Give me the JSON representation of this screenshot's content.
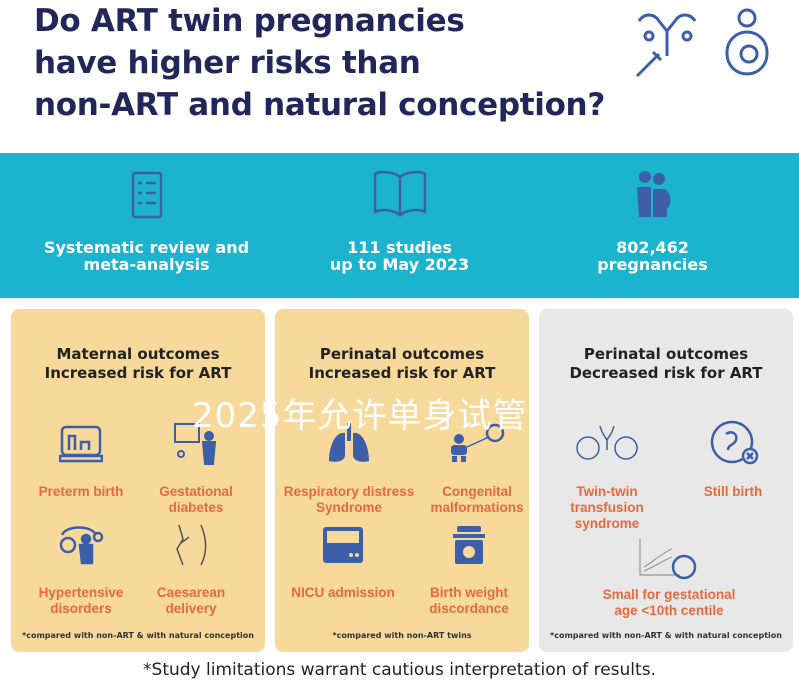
{
  "title": [
    "Do ART twin pregnancies",
    "have higher risks than",
    "non-ART and natural conception?"
  ],
  "stats": [
    {
      "icon": "checklist-icon",
      "lines": [
        "Systematic review and",
        "meta-analysis"
      ]
    },
    {
      "icon": "book-icon",
      "lines": [
        "111 studies",
        "up to May 2023"
      ]
    },
    {
      "icon": "pregnant-women-icon",
      "lines": [
        "802,462",
        "pregnancies"
      ]
    }
  ],
  "panels": [
    {
      "title": [
        "Maternal outcomes",
        "Increased risk for ART"
      ],
      "items": [
        {
          "icon": "incubator-icon",
          "label": [
            "Preterm birth"
          ]
        },
        {
          "icon": "glucose-test-icon",
          "label": [
            "Gestational",
            "diabetes"
          ]
        },
        {
          "icon": "blood-pressure-icon",
          "label": [
            "Hypertensive",
            "disorders"
          ]
        },
        {
          "icon": "caesarean-icon",
          "label": [
            "Caesarean",
            "delivery"
          ]
        }
      ],
      "note": "*compared with non-ART & with natural conception"
    },
    {
      "title": [
        "Perinatal outcomes",
        "Increased risk for ART"
      ],
      "items": [
        {
          "icon": "lungs-icon",
          "label": [
            "Respiratory distress",
            "Syndrome"
          ]
        },
        {
          "icon": "baby-magnifier-icon",
          "label": [
            "Congenital",
            "malformations"
          ]
        },
        {
          "icon": "nicu-incubator-icon",
          "label": [
            "NICU admission"
          ]
        },
        {
          "icon": "scale-icon",
          "label": [
            "Birth weight",
            "discordance"
          ]
        }
      ],
      "note": "*compared with non-ART twins"
    },
    {
      "title": [
        "Perinatal outcomes",
        "Decreased risk for ART"
      ],
      "items": [
        {
          "icon": "twin-fetus-icon",
          "label": [
            "Twin-twin",
            "transfusion",
            "syndrome"
          ]
        },
        {
          "icon": "fetus-cross-icon",
          "label": [
            "Still birth"
          ]
        },
        {
          "icon": "growth-chart-icon",
          "label": [
            "Small for gestational",
            "age <10th centile"
          ]
        }
      ],
      "note": "*compared with non-ART & with natural conception"
    }
  ],
  "footer": "*Study limitations warrant cautious interpretation of results.",
  "watermark": "2025年允许单身试管",
  "colors": {
    "title": "#22275a",
    "band": "#1cb3cf",
    "panel": "#f6d99b",
    "panel_gray": "#e8e8e8",
    "label": "#e8693b",
    "icon": "#3d5ea8"
  }
}
